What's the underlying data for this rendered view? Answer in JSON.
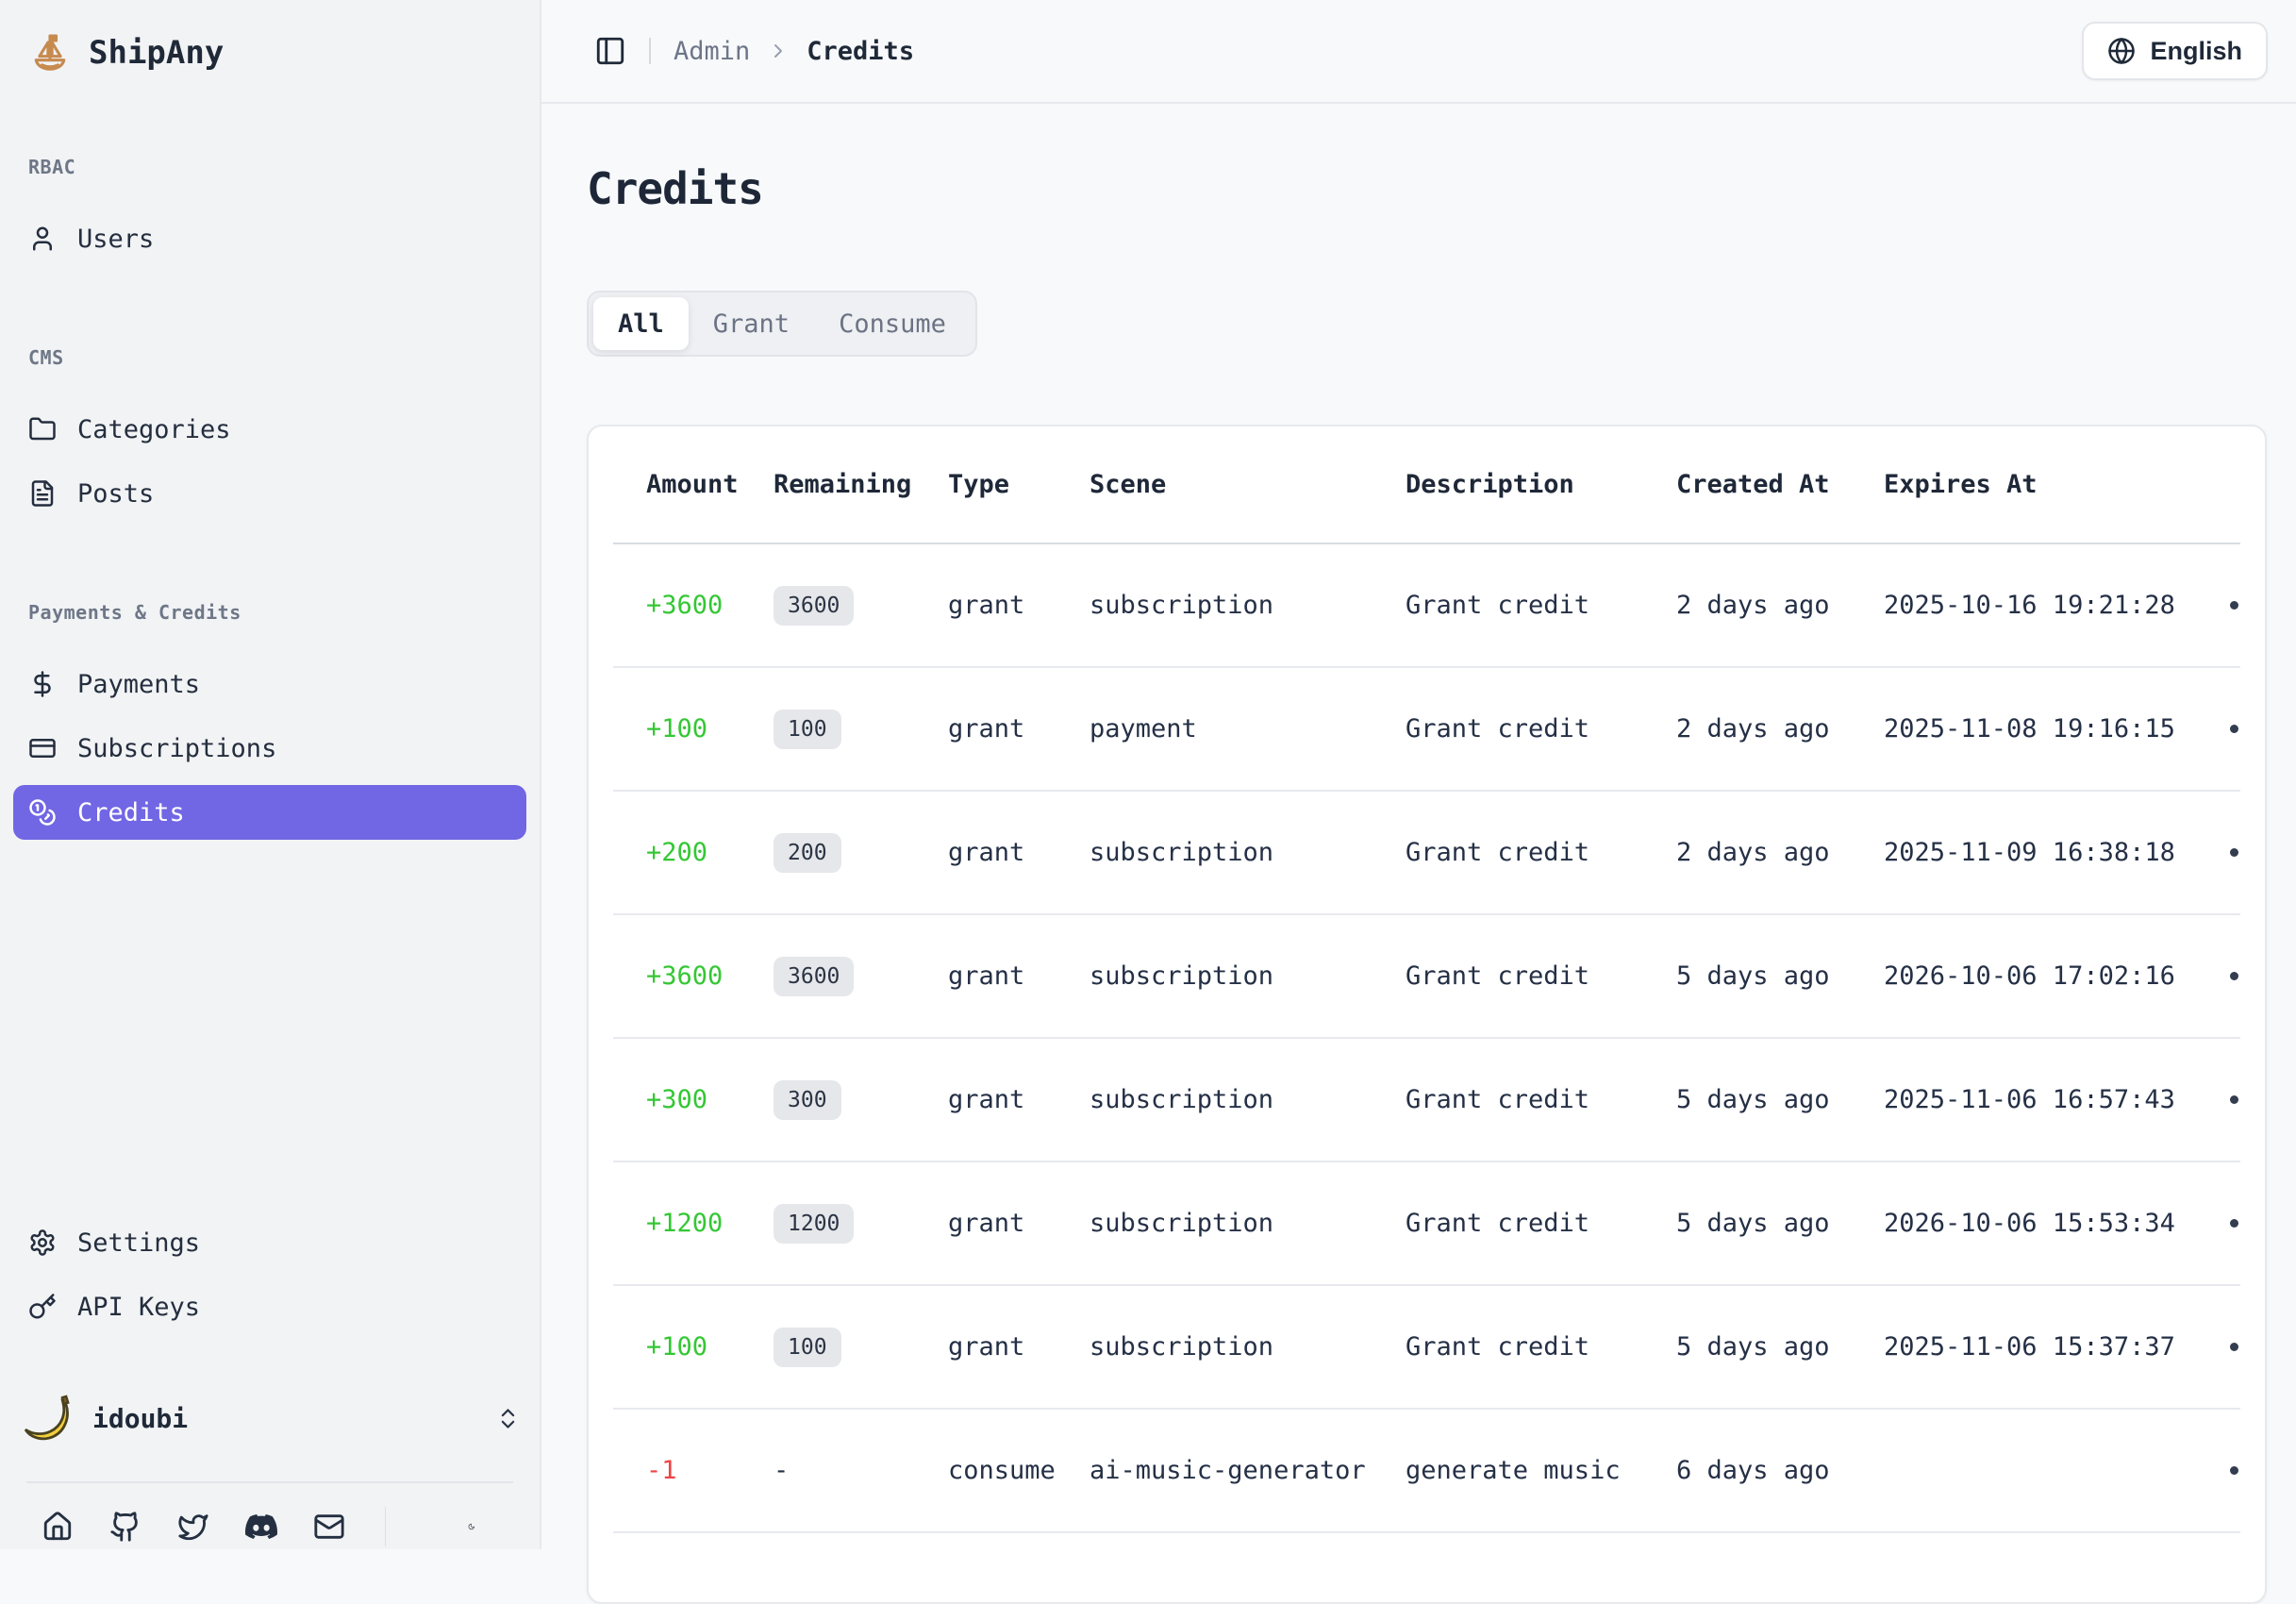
{
  "app": {
    "name": "ShipAny",
    "logo_icon": "sailboat-icon"
  },
  "colors": {
    "accent": "#7166e4",
    "positive": "#34c734",
    "negative": "#ef4444"
  },
  "sidebar": {
    "sections": [
      {
        "label": "RBAC",
        "items": [
          {
            "label": "Users",
            "icon": "user-icon",
            "active": false
          }
        ]
      },
      {
        "label": "CMS",
        "items": [
          {
            "label": "Categories",
            "icon": "folder-icon",
            "active": false
          },
          {
            "label": "Posts",
            "icon": "file-text-icon",
            "active": false
          }
        ]
      },
      {
        "label": "Payments & Credits",
        "items": [
          {
            "label": "Payments",
            "icon": "dollar-icon",
            "active": false
          },
          {
            "label": "Subscriptions",
            "icon": "credit-card-icon",
            "active": false
          },
          {
            "label": "Credits",
            "icon": "coins-icon",
            "active": true
          }
        ]
      }
    ],
    "footer_items": [
      {
        "label": "Settings",
        "icon": "gear-icon"
      },
      {
        "label": "API Keys",
        "icon": "key-icon"
      }
    ],
    "user": {
      "name": "idoubi",
      "avatar_icon": "banana-icon",
      "expand_icon": "chevrons-up-down-icon"
    },
    "social_icons": [
      "home-icon",
      "github-icon",
      "twitter-icon",
      "discord-icon",
      "mail-icon"
    ],
    "theme_toggle_icon": "moon-icon"
  },
  "header": {
    "breadcrumb": [
      "Admin",
      "Credits"
    ],
    "language": {
      "label": "English",
      "icon": "globe-icon"
    }
  },
  "page": {
    "title": "Credits",
    "tabs": [
      {
        "label": "All",
        "active": true
      },
      {
        "label": "Grant",
        "active": false
      },
      {
        "label": "Consume",
        "active": false
      }
    ]
  },
  "table": {
    "columns": [
      "Amount",
      "Remaining",
      "Type",
      "Scene",
      "Description",
      "Created At",
      "Expires At"
    ],
    "rows": [
      {
        "amount": "+3600",
        "remaining": "3600",
        "remaining_badge": true,
        "type": "grant",
        "scene": "subscription",
        "description": "Grant credit",
        "created_at": "2 days ago",
        "expires_at": "2025-10-16 19:21:28"
      },
      {
        "amount": "+100",
        "remaining": "100",
        "remaining_badge": true,
        "type": "grant",
        "scene": "payment",
        "description": "Grant credit",
        "created_at": "2 days ago",
        "expires_at": "2025-11-08 19:16:15"
      },
      {
        "amount": "+200",
        "remaining": "200",
        "remaining_badge": true,
        "type": "grant",
        "scene": "subscription",
        "description": "Grant credit",
        "created_at": "2 days ago",
        "expires_at": "2025-11-09 16:38:18"
      },
      {
        "amount": "+3600",
        "remaining": "3600",
        "remaining_badge": true,
        "type": "grant",
        "scene": "subscription",
        "description": "Grant credit",
        "created_at": "5 days ago",
        "expires_at": "2026-10-06 17:02:16"
      },
      {
        "amount": "+300",
        "remaining": "300",
        "remaining_badge": true,
        "type": "grant",
        "scene": "subscription",
        "description": "Grant credit",
        "created_at": "5 days ago",
        "expires_at": "2025-11-06 16:57:43"
      },
      {
        "amount": "+1200",
        "remaining": "1200",
        "remaining_badge": true,
        "type": "grant",
        "scene": "subscription",
        "description": "Grant credit",
        "created_at": "5 days ago",
        "expires_at": "2026-10-06 15:53:34"
      },
      {
        "amount": "+100",
        "remaining": "100",
        "remaining_badge": true,
        "type": "grant",
        "scene": "subscription",
        "description": "Grant credit",
        "created_at": "5 days ago",
        "expires_at": "2025-11-06 15:37:37"
      },
      {
        "amount": "-1",
        "remaining": "-",
        "remaining_badge": false,
        "type": "consume",
        "scene": "ai-music-generator",
        "description": "generate music",
        "created_at": "6 days ago",
        "expires_at": ""
      }
    ]
  }
}
